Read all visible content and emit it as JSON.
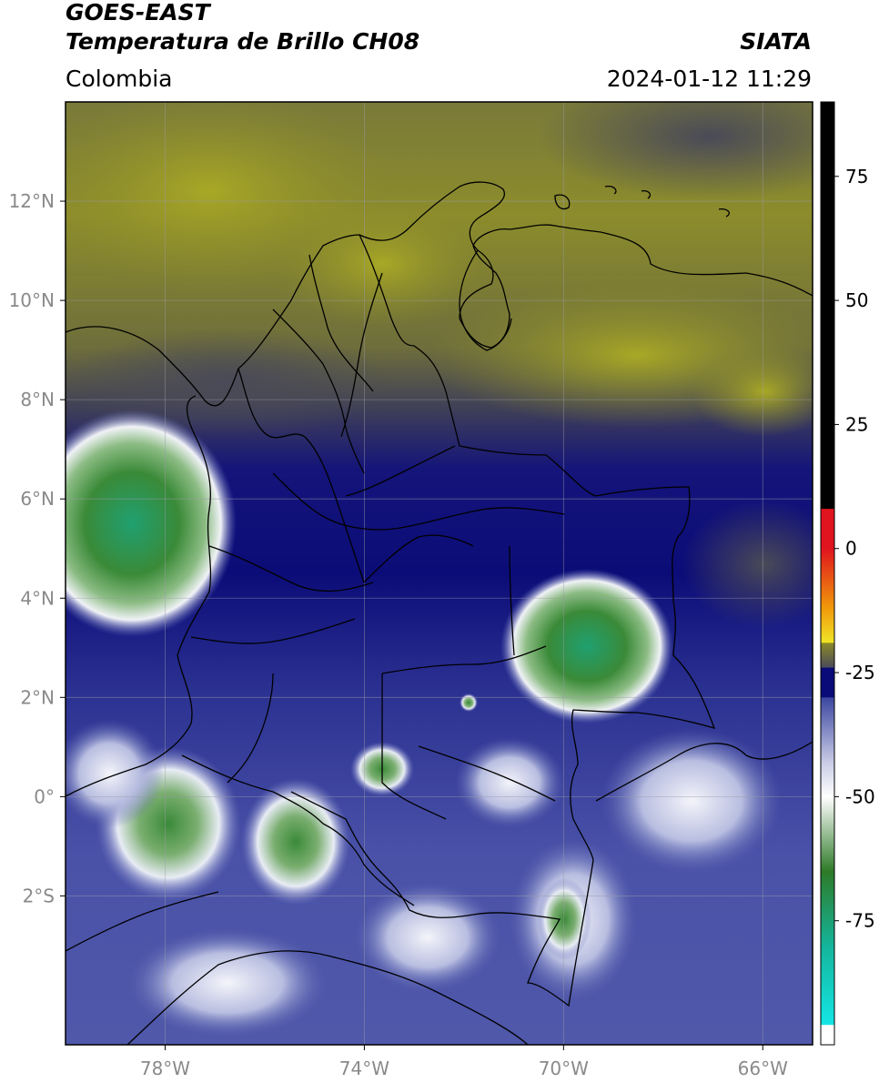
{
  "header": {
    "satellite": "GOES-EAST",
    "product": "Temperatura de Brillo CH08",
    "region": "Colombia",
    "agency": "SIATA",
    "datetime": "2024-01-12 11:29"
  },
  "map": {
    "lon_range": [
      -80,
      -65
    ],
    "lat_range": [
      -5,
      14
    ],
    "lat_ticks": [
      {
        "value": 12,
        "label": "12°N"
      },
      {
        "value": 10,
        "label": "10°N"
      },
      {
        "value": 8,
        "label": "8°N"
      },
      {
        "value": 6,
        "label": "6°N"
      },
      {
        "value": 4,
        "label": "4°N"
      },
      {
        "value": 2,
        "label": "2°N"
      },
      {
        "value": 0,
        "label": "0°"
      },
      {
        "value": -2,
        "label": "2°S"
      }
    ],
    "lon_ticks": [
      {
        "value": -78,
        "label": "78°W"
      },
      {
        "value": -74,
        "label": "74°W"
      },
      {
        "value": -70,
        "label": "70°W"
      },
      {
        "value": -66,
        "label": "66°W"
      }
    ],
    "gridlines": true
  },
  "colorbar": {
    "range": [
      -100,
      90
    ],
    "ticks": [
      {
        "value": 75,
        "label": "75"
      },
      {
        "value": 50,
        "label": "50"
      },
      {
        "value": 25,
        "label": "25"
      },
      {
        "value": 0,
        "label": "0"
      },
      {
        "value": -25,
        "label": "-25"
      },
      {
        "value": -50,
        "label": "-50"
      },
      {
        "value": -75,
        "label": "-75"
      }
    ],
    "colors": {
      "warm_top": "#000000",
      "red": "#e0141e",
      "orange": "#f09a0a",
      "yellow": "#f0e628",
      "olive": "#8c8a28",
      "gray": "#4a4a5a",
      "navy": "#0a0a78",
      "blue": "#3c46a0",
      "light": "#c8cce6",
      "white": "#ffffff",
      "green": "#2e7a28",
      "teal": "#14b49a",
      "cyan": "#14e6e6"
    }
  }
}
